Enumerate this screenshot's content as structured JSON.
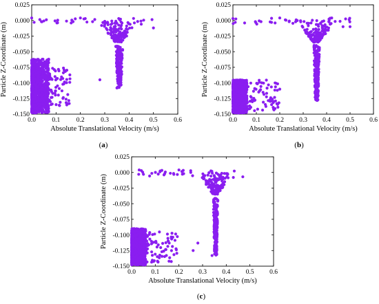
{
  "figure": {
    "marker_color": "#8A1EF0"
  },
  "chart_data": [
    {
      "type": "scatter",
      "panel": "(a)",
      "xlabel": "Absolute Translational Velocity (m/s)",
      "ylabel": "Particle Z-Coordinate (m)",
      "xlim": [
        0.0,
        0.6
      ],
      "ylim": [
        -0.15,
        0.025
      ],
      "xticks": [
        "0.0",
        "0.1",
        "0.2",
        "0.3",
        "0.4",
        "0.5",
        "0.6"
      ],
      "yticks": [
        "0.025",
        "0.000",
        "-0.025",
        "-0.050",
        "-0.075",
        "-0.100",
        "-0.125",
        "-0.150"
      ],
      "grid": false,
      "series": [
        {
          "color": "#8A1EF0",
          "regions": [
            {
              "kind": "dense_cluster",
              "x_range": [
                0.0,
                0.07
              ],
              "y_range": [
                -0.148,
                -0.062
              ],
              "approx_points": 900
            },
            {
              "kind": "scatter_cloud",
              "x_range": [
                0.05,
                0.16
              ],
              "y_range": [
                -0.14,
                -0.075
              ],
              "approx_points": 80
            },
            {
              "kind": "surface_band",
              "x_range": [
                0.0,
                0.5
              ],
              "y_range": [
                -0.005,
                0.004
              ],
              "approx_points": 25
            },
            {
              "kind": "surface_cluster",
              "x_range": [
                0.28,
                0.45
              ],
              "y_range": [
                -0.035,
                0.0
              ],
              "approx_points": 130
            },
            {
              "kind": "vertical_column",
              "x_range": [
                0.345,
                0.375
              ],
              "y_range": [
                -0.108,
                -0.04
              ],
              "approx_points": 200
            }
          ],
          "points": [
            [
              0.0,
              0.004
            ],
            [
              0.01,
              -0.003
            ],
            [
              0.04,
              -0.002
            ],
            [
              0.17,
              -0.002
            ],
            [
              0.2,
              0.004
            ],
            [
              0.22,
              0.003
            ],
            [
              0.25,
              -0.002
            ],
            [
              0.3,
              -0.003
            ],
            [
              0.39,
              -0.009
            ],
            [
              0.45,
              -0.006
            ],
            [
              0.5,
              -0.012
            ],
            [
              0.28,
              -0.095
            ],
            [
              0.35,
              -0.108
            ],
            [
              0.33,
              -0.005
            ],
            [
              0.39,
              -0.025
            ]
          ]
        }
      ]
    },
    {
      "type": "scatter",
      "panel": "(b)",
      "xlabel": "Absolute Translational Velocity (m/s)",
      "ylabel": "Particle Z-Coordinate (m)",
      "xlim": [
        0.0,
        0.6
      ],
      "ylim": [
        -0.15,
        0.025
      ],
      "xticks": [
        "0.0",
        "0.1",
        "0.2",
        "0.3",
        "0.4",
        "0.5",
        "0.6"
      ],
      "yticks": [
        "0.025",
        "0.000",
        "-0.025",
        "-0.050",
        "-0.075",
        "-0.100",
        "-0.125",
        "-0.150"
      ],
      "grid": false,
      "series": [
        {
          "color": "#8A1EF0",
          "regions": [
            {
              "kind": "dense_cluster",
              "x_range": [
                0.0,
                0.06
              ],
              "y_range": [
                -0.148,
                -0.095
              ],
              "approx_points": 900
            },
            {
              "kind": "scatter_cloud",
              "x_range": [
                0.05,
                0.2
              ],
              "y_range": [
                -0.145,
                -0.095
              ],
              "approx_points": 80
            },
            {
              "kind": "surface_band",
              "x_range": [
                0.0,
                0.5
              ],
              "y_range": [
                -0.006,
                0.005
              ],
              "approx_points": 30
            },
            {
              "kind": "surface_cluster",
              "x_range": [
                0.3,
                0.47
              ],
              "y_range": [
                -0.035,
                0.0
              ],
              "approx_points": 130
            },
            {
              "kind": "vertical_column",
              "x_range": [
                0.345,
                0.37
              ],
              "y_range": [
                -0.128,
                -0.04
              ],
              "approx_points": 200
            }
          ],
          "points": [
            [
              0.0,
              0.003
            ],
            [
              0.01,
              -0.003
            ],
            [
              0.05,
              -0.004
            ],
            [
              0.12,
              -0.002
            ],
            [
              0.18,
              -0.004
            ],
            [
              0.2,
              0.004
            ],
            [
              0.24,
              -0.002
            ],
            [
              0.27,
              0.001
            ],
            [
              0.47,
              -0.01
            ],
            [
              0.5,
              -0.01
            ],
            [
              0.2,
              -0.11
            ],
            [
              0.18,
              -0.1
            ],
            [
              0.36,
              -0.128
            ]
          ]
        }
      ]
    },
    {
      "type": "scatter",
      "panel": "(c)",
      "xlabel": "Absolute Translational Velocity (m/s)",
      "ylabel": "Particle Z-Coordinate (m)",
      "xlim": [
        0.0,
        0.6
      ],
      "ylim": [
        -0.15,
        0.025
      ],
      "xticks": [
        "0.0",
        "0.1",
        "0.2",
        "0.3",
        "0.4",
        "0.5",
        "0.6"
      ],
      "yticks": [
        "0.025",
        "0.000",
        "-0.025",
        "-0.050",
        "-0.075",
        "-0.100",
        "-0.125",
        "-0.150"
      ],
      "grid": false,
      "series": [
        {
          "color": "#8A1EF0",
          "regions": [
            {
              "kind": "dense_cluster",
              "x_range": [
                0.0,
                0.06
              ],
              "y_range": [
                -0.148,
                -0.09
              ],
              "approx_points": 900
            },
            {
              "kind": "scatter_cloud",
              "x_range": [
                0.05,
                0.2
              ],
              "y_range": [
                -0.145,
                -0.095
              ],
              "approx_points": 80
            },
            {
              "kind": "surface_band",
              "x_range": [
                0.03,
                0.47
              ],
              "y_range": [
                -0.006,
                0.004
              ],
              "approx_points": 30
            },
            {
              "kind": "surface_cluster",
              "x_range": [
                0.3,
                0.45
              ],
              "y_range": [
                -0.035,
                0.0
              ],
              "approx_points": 130
            },
            {
              "kind": "vertical_column",
              "x_range": [
                0.345,
                0.365
              ],
              "y_range": [
                -0.133,
                -0.04
              ],
              "approx_points": 200
            }
          ],
          "points": [
            [
              0.03,
              -0.003
            ],
            [
              0.05,
              -0.003
            ],
            [
              0.12,
              0.001
            ],
            [
              0.14,
              -0.002
            ],
            [
              0.2,
              0.004
            ],
            [
              0.22,
              -0.002
            ],
            [
              0.25,
              0.0
            ],
            [
              0.43,
              -0.008
            ],
            [
              0.47,
              -0.007
            ],
            [
              0.28,
              -0.113
            ],
            [
              0.26,
              -0.125
            ],
            [
              0.34,
              -0.133
            ]
          ]
        }
      ]
    }
  ]
}
